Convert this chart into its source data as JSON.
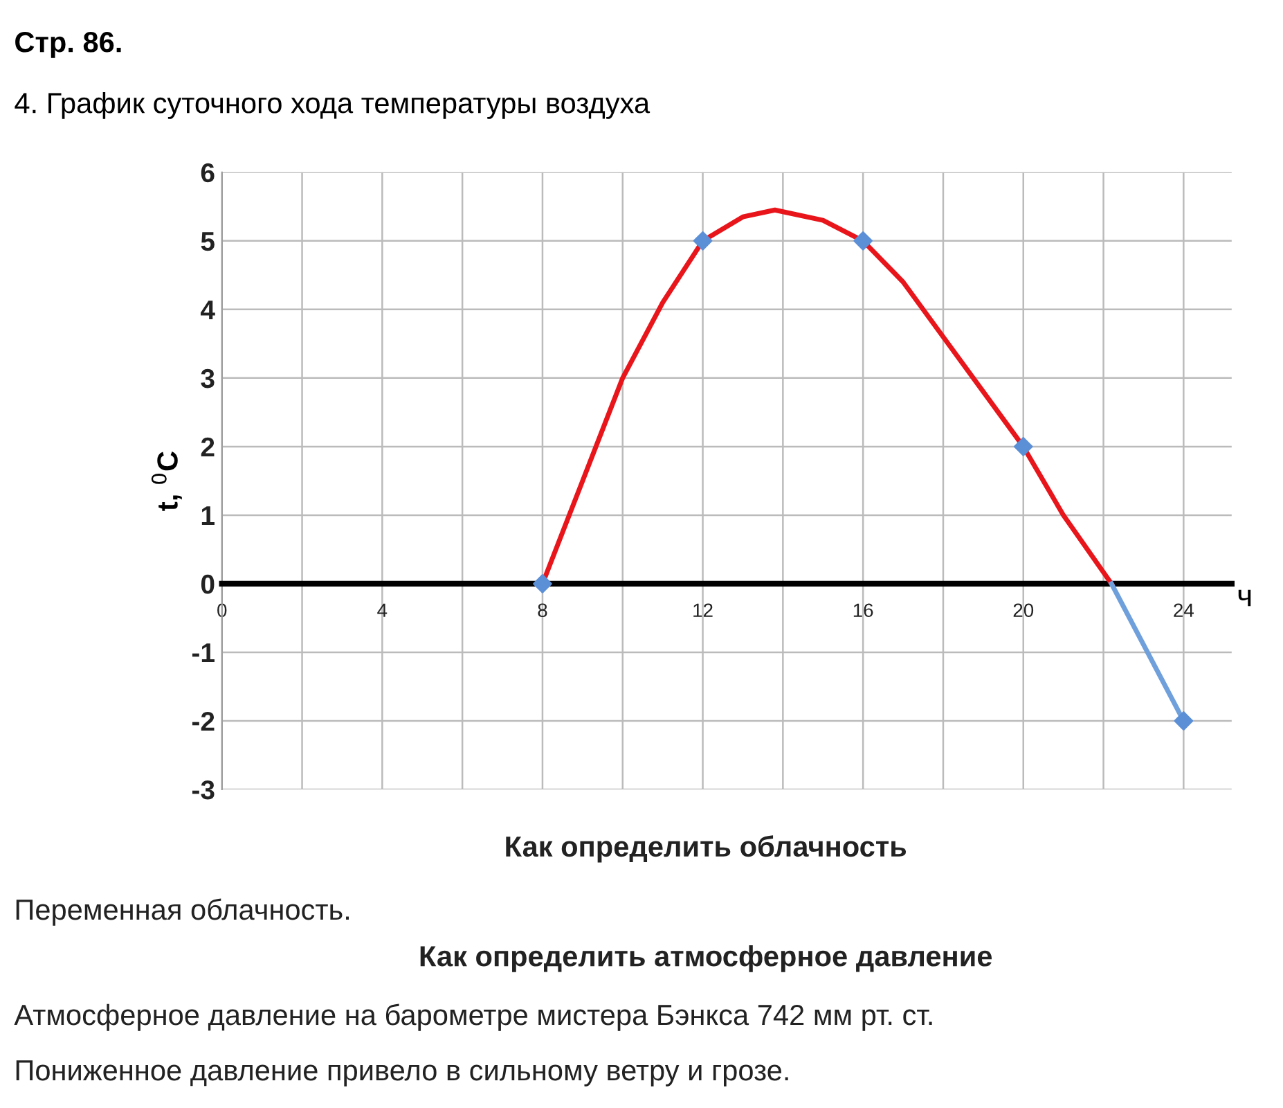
{
  "chart_data": {
    "type": "line",
    "title": "4. График суточного хода температуры воздуха",
    "xlabel": "ч",
    "ylabel": "t, $^{0}$C",
    "xlim": [
      0,
      25.2
    ],
    "ylim": [
      -3,
      6
    ],
    "xticks": [
      0,
      {
        "value": 2,
        "label": null
      },
      4,
      {
        "value": 6,
        "label": null
      },
      8,
      {
        "value": 10,
        "label": null
      },
      12,
      {
        "value": 14,
        "label": null
      },
      16,
      {
        "value": 18,
        "label": null
      },
      20,
      {
        "value": 22,
        "label": null
      },
      24
    ],
    "yticks": [
      -3,
      -2,
      -1,
      0,
      1,
      2,
      3,
      4,
      5,
      6
    ],
    "grid": true,
    "legend": false,
    "series": [
      {
        "color": "#e8151b",
        "x": [
          8,
          9,
          10,
          11,
          12,
          13,
          13.8,
          15,
          16,
          17,
          18,
          19,
          20,
          21,
          22.2
        ],
        "values": [
          0,
          1.5,
          3.0,
          4.1,
          5,
          5.35,
          5.45,
          5.3,
          5,
          4.4,
          3.6,
          2.8,
          2,
          1.0,
          0
        ],
        "marker": "none"
      },
      {
        "color": "#6fa0dc",
        "x": [
          22.2,
          24
        ],
        "values": [
          0,
          -2
        ],
        "marker": "none"
      },
      {
        "type": "scatter",
        "color": "#5b8fd6",
        "x": [
          8,
          12,
          16,
          20,
          24
        ],
        "values": [
          0,
          5,
          5,
          2,
          -2
        ],
        "marker": "diamond"
      }
    ],
    "annotations": [
      "Стр. 86.",
      "Как определить облачность",
      "Переменная облачность.",
      "Как определить атмосферное давление",
      "Атмосферное давление на барометре мистера Бэнкса 742 мм рт. ст.",
      "Пониженное давление привело в сильному ветру и грозе."
    ]
  }
}
